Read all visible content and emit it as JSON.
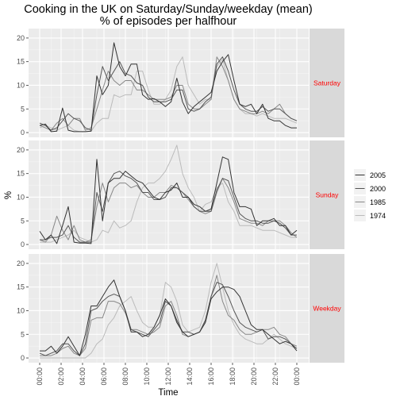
{
  "chart_data": {
    "type": "line",
    "title": "Cooking in the UK on Saturday/Sunday/weekday (mean)",
    "subtitle": "% of episodes per halfhour",
    "xlabel": "Time",
    "ylabel": "%",
    "ylim": [
      -1,
      22
    ],
    "y_ticks": [
      0,
      5,
      10,
      15,
      20
    ],
    "x_ticks": [
      "00:00",
      "02:00",
      "04:00",
      "06:00",
      "08:00",
      "10:00",
      "12:00",
      "14:00",
      "16:00",
      "18:00",
      "20:00",
      "22:00",
      "00:00"
    ],
    "legend_position": "right",
    "grid": true,
    "panels": [
      {
        "name": "Saturday",
        "series": [
          {
            "name": "2005",
            "color": "#333333",
            "values": [
              1.5,
              1.8,
              0.2,
              0.3,
              5.2,
              0.5,
              0.2,
              0.2,
              0.2,
              0.3,
              12,
              8,
              10,
              19,
              14,
              12,
              14.5,
              14.5,
              8,
              7,
              7.2,
              6.5,
              5.5,
              6.5,
              11.5,
              6.5,
              4,
              5.5,
              6.5,
              7.5,
              8.5,
              13,
              15,
              16.5,
              11,
              6,
              5.5,
              6,
              4,
              6,
              3,
              2.5,
              2.5,
              1.5,
              1,
              1
            ]
          },
          {
            "name": "2000",
            "color": "#555555",
            "values": [
              2,
              1.5,
              0.5,
              1,
              2.5,
              4,
              3,
              2.5,
              1,
              0.5,
              8,
              14,
              11,
              13,
              15,
              12.5,
              12,
              10.5,
              10,
              7.5,
              6.5,
              6.5,
              6.5,
              7,
              9,
              9,
              5,
              4.5,
              5,
              6.5,
              7.5,
              14.5,
              16,
              13,
              9,
              6,
              5,
              4.5,
              4.5,
              5.5,
              4.5,
              5,
              5,
              4,
              3,
              2.5
            ]
          },
          {
            "name": "1985",
            "color": "#888888",
            "values": [
              1.5,
              1,
              0.5,
              2,
              3,
              1.5,
              3,
              3,
              0.5,
              1,
              5,
              9,
              13,
              11,
              10,
              11,
              11,
              9,
              9,
              8,
              7,
              7,
              7,
              7.5,
              10,
              10,
              6,
              5,
              5,
              6,
              7,
              16,
              14,
              11,
              7,
              5,
              4.5,
              4,
              4,
              4.5,
              4,
              5,
              6,
              4,
              3,
              2.5
            ]
          },
          {
            "name": "1974",
            "color": "#bbbbbb",
            "values": [
              1,
              1.5,
              1,
              0.5,
              1,
              1.5,
              0.5,
              0.2,
              0.2,
              0.3,
              2,
              3,
              3,
              8,
              7.5,
              8,
              8,
              13,
              13,
              9,
              6,
              6,
              7,
              9,
              14,
              16,
              10,
              8,
              6,
              7,
              7,
              14,
              15.5,
              11,
              7,
              5,
              4,
              4,
              3.5,
              4,
              3.5,
              3,
              3,
              3,
              2.5,
              2
            ]
          }
        ]
      },
      {
        "name": "Sunday",
        "series": [
          {
            "name": "2005",
            "color": "#333333",
            "values": [
              2.8,
              1,
              2,
              0.2,
              4,
              8,
              0.5,
              0.3,
              0.3,
              0.2,
              18,
              5,
              13,
              14,
              14,
              15.5,
              14.5,
              13.5,
              13,
              11.5,
              10,
              9.5,
              11,
              11.5,
              13,
              10,
              10,
              8.5,
              8,
              7,
              7.5,
              13,
              18.5,
              18,
              11,
              8,
              8,
              7.5,
              4,
              5,
              5,
              5.5,
              4,
              4,
              2,
              3
            ]
          },
          {
            "name": "2000",
            "color": "#555555",
            "values": [
              1,
              1,
              1.5,
              1.5,
              2,
              4,
              1.5,
              0.5,
              0.5,
              0.5,
              11,
              7,
              13,
              15,
              15.5,
              14.5,
              14,
              13,
              11,
              11,
              9.5,
              9.5,
              10,
              12,
              12,
              11,
              10,
              8,
              7,
              7,
              7,
              11.5,
              14,
              13.5,
              10,
              6.5,
              5.5,
              5,
              5,
              4.5,
              4.5,
              5,
              4.5,
              3.5,
              2,
              2
            ]
          },
          {
            "name": "1985",
            "color": "#888888",
            "values": [
              1,
              0.5,
              2,
              6,
              3,
              1,
              4,
              1,
              0.5,
              1,
              8,
              13,
              9,
              12,
              13,
              13,
              12,
              12.5,
              11,
              10,
              10,
              11,
              11,
              12.5,
              12,
              11,
              9.5,
              8,
              7,
              6.5,
              7,
              11,
              14,
              12,
              9,
              5.5,
              5,
              4.5,
              4.5,
              4,
              5,
              5,
              5,
              4,
              2.5,
              1.5
            ]
          },
          {
            "name": "1974",
            "color": "#bbbbbb",
            "values": [
              0.5,
              0.5,
              0.5,
              1,
              1.5,
              2,
              3,
              1.5,
              1,
              0.5,
              1,
              3,
              2.5,
              5,
              3.5,
              4,
              5,
              9,
              12,
              13,
              13,
              14,
              15.5,
              18,
              21,
              15,
              12,
              10,
              7,
              8.5,
              9,
              12,
              13,
              9,
              7,
              4,
              4,
              4,
              3.5,
              3,
              3,
              3,
              2.5,
              2,
              1.5,
              1.5
            ]
          }
        ]
      },
      {
        "name": "Weekday",
        "series": [
          {
            "name": "2005",
            "color": "#333333",
            "values": [
              1.5,
              1.5,
              2.5,
              1,
              2.5,
              4.5,
              2.5,
              0.5,
              5,
              11,
              11,
              13,
              15,
              16.5,
              13,
              10,
              5.5,
              5.5,
              4.5,
              5,
              6.5,
              9,
              12.5,
              11,
              7.5,
              5.5,
              4.5,
              5,
              5.5,
              7.5,
              12.5,
              14,
              15,
              15,
              14.5,
              13,
              10,
              7,
              6,
              6,
              5,
              4,
              3,
              3.5,
              3,
              1.5
            ]
          },
          {
            "name": "2000",
            "color": "#555555",
            "values": [
              1,
              0.5,
              1,
              1.5,
              3,
              3,
              1.5,
              0.5,
              3,
              10,
              10.5,
              12,
              13,
              13.5,
              13,
              10,
              6,
              5.5,
              5,
              4.5,
              6,
              7.5,
              12,
              11,
              8,
              5.5,
              5.5,
              5,
              5.5,
              8,
              13,
              16,
              15.5,
              13,
              10,
              7.5,
              6.5,
              6,
              5.5,
              6,
              4,
              4.5,
              4.5,
              4,
              3,
              2
            ]
          },
          {
            "name": "1985",
            "color": "#888888",
            "values": [
              0.5,
              0.5,
              0.5,
              1,
              2,
              2.5,
              1,
              0.5,
              2,
              8,
              8.5,
              8.5,
              12,
              12,
              11.5,
              9.5,
              6,
              6,
              5.5,
              5,
              5.5,
              6.5,
              11,
              12,
              9,
              5,
              4.5,
              5,
              5.5,
              8,
              13,
              17.5,
              12,
              9,
              8,
              6,
              5,
              5,
              5.5,
              6,
              6,
              6.5,
              5,
              4.5,
              3,
              2.5
            ]
          },
          {
            "name": "1974",
            "color": "#bbbbbb",
            "values": [
              0,
              0,
              0,
              0,
              0,
              0,
              0,
              0,
              0,
              1,
              3,
              4,
              7,
              8.5,
              11,
              12,
              13,
              10,
              7.5,
              6.5,
              6.5,
              9,
              16,
              15,
              12,
              7,
              5.5,
              6,
              6.5,
              10,
              16,
              20,
              15,
              10,
              7,
              5,
              4,
              3.5,
              3,
              3,
              4,
              5,
              4,
              3,
              2.5,
              2
            ]
          }
        ]
      }
    ]
  }
}
